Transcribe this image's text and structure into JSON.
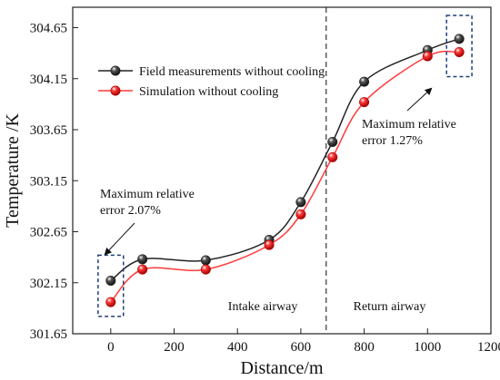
{
  "chart_data": {
    "type": "line",
    "xlabel": "Distance/m",
    "ylabel": "Temperature /K",
    "xlim": [
      -120,
      1200
    ],
    "ylim": [
      301.65,
      304.85
    ],
    "x_ticks": [
      0,
      200,
      400,
      600,
      800,
      1000,
      1200
    ],
    "y_ticks": [
      301.65,
      302.15,
      302.65,
      303.15,
      303.65,
      304.15,
      304.65
    ],
    "x_tick_labels": [
      "0",
      "200",
      "400",
      "600",
      "800",
      "1000",
      "1200"
    ],
    "y_tick_labels": [
      "301.65",
      "302.15",
      "302.65",
      "303.15",
      "303.65",
      "304.15",
      "304.65"
    ],
    "legend_position": "upper-left",
    "grid": false,
    "series": [
      {
        "name": "Field measurements without cooling",
        "color": "#555555",
        "x": [
          0,
          100,
          300,
          500,
          600,
          700,
          800,
          1000,
          1100
        ],
        "y": [
          302.17,
          302.38,
          302.37,
          302.57,
          302.94,
          303.53,
          304.12,
          304.43,
          304.54
        ]
      },
      {
        "name": "Simulation without cooling",
        "color": "#ff3b3b",
        "x": [
          0,
          100,
          300,
          500,
          600,
          700,
          800,
          1000,
          1100
        ],
        "y": [
          301.96,
          302.28,
          302.28,
          302.52,
          302.82,
          303.38,
          303.92,
          304.37,
          304.41
        ]
      }
    ],
    "divider_x": 680,
    "region_labels": [
      {
        "text": "Intake airway",
        "x": 480,
        "y": 301.88
      },
      {
        "text": "Return airway",
        "x": 880,
        "y": 301.88
      }
    ],
    "annotations": [
      {
        "lines": [
          "Maximum relative",
          "error 2.07%"
        ],
        "box_x": [
          -40,
          40
        ],
        "box_y": [
          301.82,
          302.42
        ]
      },
      {
        "lines": [
          "Maximum relative",
          "error 1.27%"
        ],
        "box_x": [
          1060,
          1140
        ],
        "box_y": [
          304.17,
          304.77
        ]
      }
    ]
  }
}
